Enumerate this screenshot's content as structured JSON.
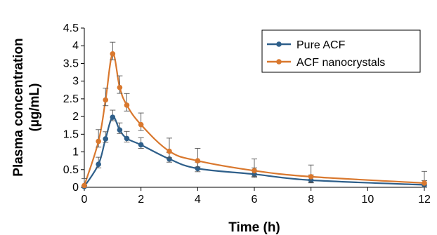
{
  "chart_data": {
    "type": "line",
    "xlabel": "Time (h)",
    "ylabel": [
      "Plasma concentration",
      "(µg/mL)"
    ],
    "x_ticks": [
      "0",
      "2",
      "4",
      "6",
      "8",
      "10",
      "12"
    ],
    "y_ticks": [
      "0",
      "0.5",
      "1",
      "1.5",
      "2",
      "2.5",
      "3",
      "3.5",
      "4",
      "4.5"
    ],
    "xlim": [
      0,
      12
    ],
    "ylim": [
      0,
      4.5
    ],
    "grid": false,
    "legend_position": "top-right",
    "x": [
      0,
      0.5,
      0.75,
      1,
      1.25,
      1.5,
      2,
      3,
      4,
      6,
      8,
      12
    ],
    "series": [
      {
        "name": "Pure ACF",
        "color": "#2e5f8a",
        "values": [
          0.02,
          0.65,
          1.37,
          1.98,
          1.62,
          1.38,
          1.2,
          0.8,
          0.53,
          0.37,
          0.2,
          0.07
        ],
        "errors": [
          0.03,
          0.2,
          0.2,
          0.2,
          0.2,
          0.2,
          0.2,
          0.18,
          0.18,
          0.18,
          0.15,
          0.12
        ]
      },
      {
        "name": "ACF nanocrystals",
        "color": "#d9782e",
        "values": [
          0.05,
          1.3,
          2.47,
          3.77,
          2.82,
          2.32,
          1.77,
          1.02,
          0.75,
          0.47,
          0.3,
          0.12
        ],
        "errors": [
          0.2,
          0.33,
          0.33,
          0.33,
          0.33,
          0.33,
          0.33,
          0.37,
          0.35,
          0.33,
          0.33,
          0.33
        ]
      }
    ]
  }
}
